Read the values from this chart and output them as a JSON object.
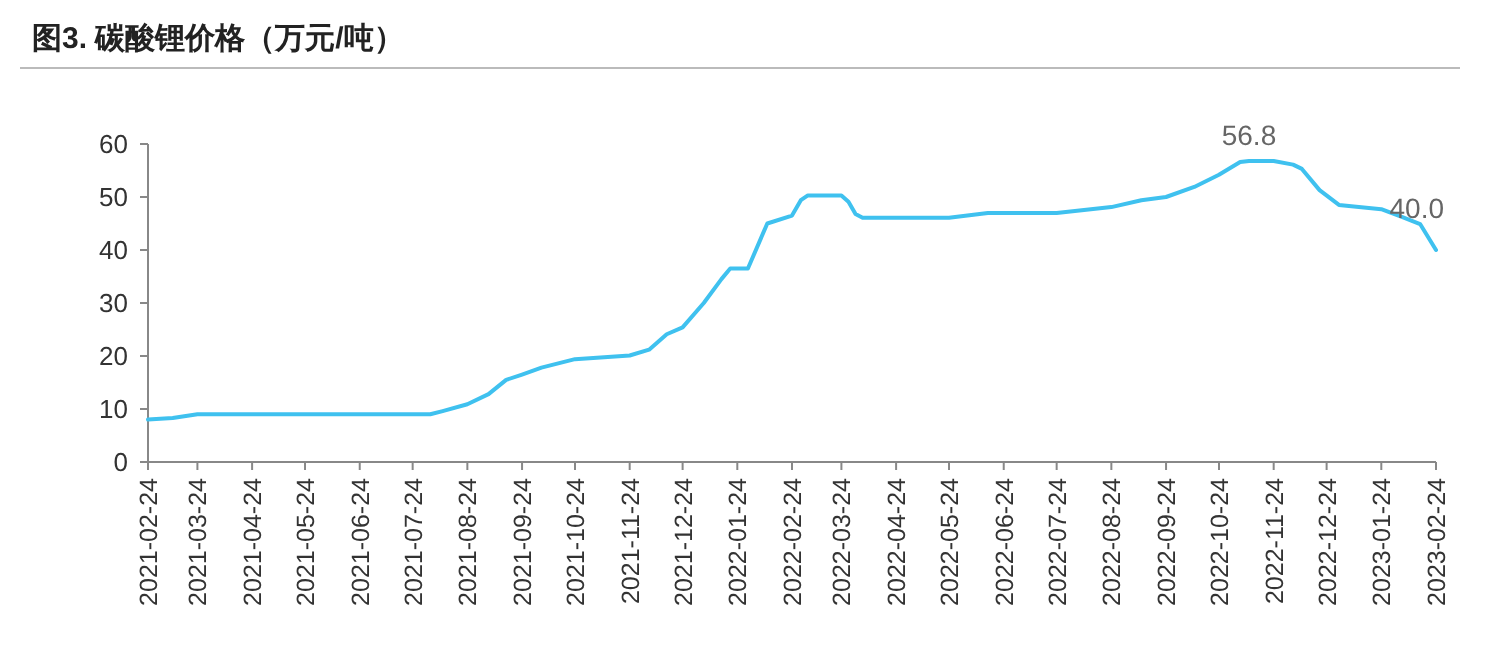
{
  "chart_data": {
    "type": "line",
    "title": "图3. 碳酸锂价格（万元/吨）",
    "x": [
      "2021-02-24",
      "2021-03-10",
      "2021-03-24",
      "2021-08-03",
      "2021-08-10",
      "2021-08-24",
      "2021-09-05",
      "2021-09-15",
      "2021-09-24",
      "2021-10-05",
      "2021-10-24",
      "2021-11-24",
      "2021-12-05",
      "2021-12-15",
      "2021-12-24",
      "2022-01-05",
      "2022-01-15",
      "2022-01-20",
      "2022-01-30",
      "2022-02-10",
      "2022-02-24",
      "2022-03-01",
      "2022-03-05",
      "2022-03-24",
      "2022-03-28",
      "2022-04-01",
      "2022-04-05",
      "2022-05-24",
      "2022-06-15",
      "2022-07-24",
      "2022-08-24",
      "2022-09-10",
      "2022-09-24",
      "2022-10-10",
      "2022-10-24",
      "2022-11-05",
      "2022-11-10",
      "2022-11-24",
      "2022-12-05",
      "2022-12-10",
      "2022-12-20",
      "2022-12-31",
      "2023-01-24",
      "2023-02-05",
      "2023-02-15",
      "2023-02-24"
    ],
    "series": [
      {
        "color": "#3fc1ef",
        "values": [
          8.0,
          8.3,
          9.0,
          9.0,
          9.6,
          10.9,
          12.8,
          15.5,
          16.5,
          17.8,
          19.4,
          20.1,
          21.2,
          24.1,
          25.4,
          30.0,
          34.5,
          36.5,
          36.5,
          45.0,
          46.5,
          49.4,
          50.3,
          50.3,
          49.1,
          46.8,
          46.1,
          46.1,
          47.0,
          47.0,
          48.1,
          49.4,
          50.0,
          51.9,
          54.2,
          56.6,
          56.8,
          56.8,
          56.1,
          55.3,
          51.3,
          48.5,
          47.7,
          46.2,
          44.9,
          40.0
        ]
      }
    ],
    "xlim": [
      "2021-02-24",
      "2023-02-24"
    ],
    "xticks": [
      "2021-02-24",
      "2021-03-24",
      "2021-04-24",
      "2021-05-24",
      "2021-06-24",
      "2021-07-24",
      "2021-08-24",
      "2021-09-24",
      "2021-10-24",
      "2021-11-24",
      "2021-12-24",
      "2022-01-24",
      "2022-02-24",
      "2022-03-24",
      "2022-04-24",
      "2022-05-24",
      "2022-06-24",
      "2022-07-24",
      "2022-08-24",
      "2022-09-24",
      "2022-10-24",
      "2022-11-24",
      "2022-12-24",
      "2023-01-24",
      "2023-02-24"
    ],
    "ylim": [
      0,
      60
    ],
    "yticks": [
      0,
      10,
      20,
      30,
      40,
      50,
      60
    ],
    "annotations": [
      {
        "text": "56.8",
        "x": "2022-11-10",
        "y": 56.8
      },
      {
        "text": "40.0",
        "x": "2023-02-24",
        "y": 40.0
      }
    ],
    "marker": "none",
    "line_style": "solid"
  }
}
